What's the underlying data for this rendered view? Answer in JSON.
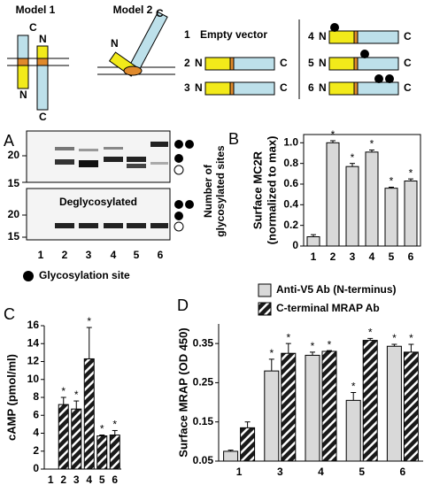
{
  "models": [
    {
      "title": "Model 1",
      "labels": [
        "C",
        "N",
        "N",
        "C"
      ]
    },
    {
      "title": "Model 2",
      "labels": [
        "N",
        "C"
      ]
    }
  ],
  "constructs": [
    {
      "number": "1",
      "label": "Empty vector"
    },
    {
      "number": "2",
      "n_label": "N",
      "c_label": "C"
    },
    {
      "number": "3",
      "n_label": "N",
      "c_label": "C"
    },
    {
      "number": "4",
      "n_label": "N",
      "c_label": "C"
    },
    {
      "number": "5",
      "n_label": "N",
      "c_label": "C"
    },
    {
      "number": "6",
      "n_label": "N",
      "c_label": "C"
    }
  ],
  "panel_a": {
    "label": "A",
    "top_markers": [
      "20",
      "15"
    ],
    "bottom_markers": [
      "20",
      "15"
    ],
    "bottom_title": "Deglycosylated",
    "lanes": [
      "1",
      "2",
      "3",
      "4",
      "5",
      "6"
    ],
    "dots_title": [
      "Number of",
      "glycosylated sites"
    ],
    "legend": "Glycosylation site"
  },
  "chart_data": [
    {
      "type": "bar",
      "panel": "B",
      "ylabel": [
        "Surface MC2R",
        "(normalized to max)"
      ],
      "categories": [
        "1",
        "2",
        "3",
        "4",
        "5",
        "6"
      ],
      "values": [
        0.09,
        1.0,
        0.77,
        0.91,
        0.56,
        0.63
      ],
      "errors": [
        0.02,
        0.02,
        0.03,
        0.02,
        0.01,
        0.02
      ],
      "significance": [
        null,
        "*",
        "*",
        "*",
        "*",
        "*"
      ],
      "color": "#d9d9d9",
      "hatch": false,
      "ylim": [
        0,
        1.08
      ],
      "yticks": [
        0,
        0.2,
        0.4,
        0.6,
        0.8,
        {
          "value": 1,
          "label": "1.0"
        }
      ],
      "frame": true
    },
    {
      "type": "bar",
      "panel": "C",
      "ylabel": [
        "cAMP (pmol/ml)"
      ],
      "categories": [
        "1",
        "2",
        "3",
        "4",
        "5",
        "6"
      ],
      "values": [
        0,
        7.2,
        6.7,
        12.3,
        3.7,
        3.8
      ],
      "errors": [
        0,
        0.8,
        0.9,
        3.5,
        0.1,
        0.5
      ],
      "significance": [
        null,
        "*",
        "*",
        "*",
        "*",
        "*"
      ],
      "color": "#1a1a1a",
      "hatch": true,
      "ylim": [
        0,
        16
      ],
      "yticks": [
        0,
        2,
        4,
        6,
        8,
        10,
        12,
        14,
        16
      ],
      "frame": false
    },
    {
      "type": "bar",
      "panel": "D",
      "ylabel": [
        "Surface MRAP (OD 450)"
      ],
      "categories": [
        "1",
        "3",
        "4",
        "5",
        "6"
      ],
      "series": [
        {
          "name": "Anti-V5 Ab (N-terminus)",
          "color": "#d9d9d9",
          "hatch": false,
          "values": [
            0.075,
            0.28,
            0.32,
            0.205,
            0.343
          ],
          "errors": [
            0.003,
            0.03,
            0.008,
            0.02,
            0.005
          ],
          "significance": [
            null,
            "*",
            "*",
            "*",
            "*"
          ]
        },
        {
          "name": "C-terminal MRAP Ab",
          "color": "#1a1a1a",
          "hatch": true,
          "values": [
            0.135,
            0.325,
            0.33,
            0.358,
            0.328
          ],
          "errors": [
            0.015,
            0.025,
            0.002,
            0.005,
            0.02
          ],
          "significance": [
            null,
            "*",
            "*",
            "*",
            "*"
          ]
        }
      ],
      "ylim": [
        0.05,
        0.4
      ],
      "yticks": [
        0.05,
        0.15,
        0.25,
        0.35
      ],
      "frame": false
    }
  ]
}
